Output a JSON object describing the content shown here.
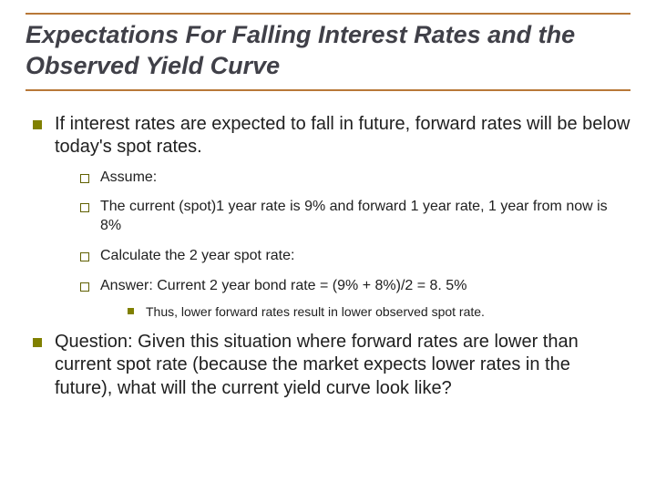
{
  "title": "Expectations For Falling Interest Rates and the Observed Yield Curve",
  "colors": {
    "rule": "#b87838",
    "bullet_fill": "#808000",
    "bullet_outline": "#606000",
    "text": "#202020",
    "title_text": "#404048",
    "background": "#ffffff"
  },
  "typography": {
    "title_fontsize": 27,
    "title_italic": true,
    "title_bold": true,
    "lvl1_fontsize": 20,
    "lvl2_fontsize": 16,
    "lvl3_fontsize": 14,
    "font_family": "Arial"
  },
  "items": [
    {
      "text": "If interest rates are expected to fall in future, forward rates will be below today's spot rates.",
      "children": [
        {
          "text": "Assume:"
        },
        {
          "text": "The current (spot)1 year rate is 9% and forward 1 year rate, 1 year from now is 8%"
        },
        {
          "text": "Calculate the 2 year spot rate:"
        },
        {
          "text": "Answer: Current 2 year bond rate = (9% + 8%)/2 = 8. 5%",
          "children": [
            {
              "text": "Thus, lower forward rates result in lower observed spot rate."
            }
          ]
        }
      ]
    },
    {
      "text": "Question: Given this situation where forward rates are lower than current spot rate (because the market expects lower rates in the future), what will the current yield curve look like?"
    }
  ]
}
